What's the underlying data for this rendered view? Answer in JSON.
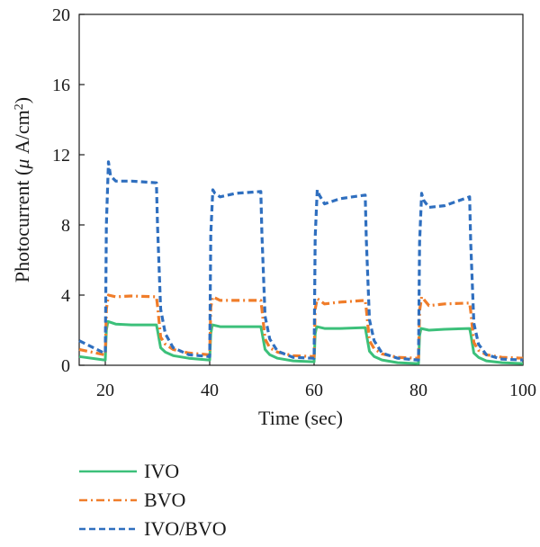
{
  "chart_data": {
    "type": "line",
    "xlabel": "Time (sec)",
    "ylabel_prefix": "Photocurrent (",
    "ylabel_mu": "μ",
    "ylabel_unit": " A/cm",
    "ylabel_sup": "2",
    "ylabel_suffix": ")",
    "xlim": [
      15,
      100
    ],
    "ylim": [
      0,
      20
    ],
    "xticks": [
      20,
      40,
      60,
      80,
      100
    ],
    "yticks": [
      0,
      4,
      8,
      12,
      16,
      20
    ],
    "grid": false,
    "legend_position": "bottom-left",
    "series": [
      {
        "name": "IVO",
        "color": "#3cc07a",
        "dash": "solid",
        "x": [
          15,
          19.8,
          20,
          20.2,
          20.5,
          22,
          25,
          29.8,
          30,
          30.6,
          31.5,
          33,
          36,
          39.8,
          40,
          40.2,
          40.5,
          42,
          45,
          49.8,
          50,
          50.6,
          51.5,
          53,
          56,
          59.8,
          60,
          60.2,
          60.5,
          62,
          65,
          69.8,
          70,
          70.6,
          71.5,
          73,
          76,
          79.8,
          80,
          80.2,
          80.5,
          82,
          85,
          89.8,
          90,
          90.6,
          91.5,
          93,
          96,
          100
        ],
        "y": [
          0.5,
          0.3,
          0.3,
          2.0,
          2.5,
          2.35,
          2.3,
          2.3,
          2.0,
          1.0,
          0.75,
          0.55,
          0.4,
          0.3,
          0.3,
          1.8,
          2.3,
          2.2,
          2.2,
          2.2,
          1.9,
          0.9,
          0.6,
          0.4,
          0.25,
          0.2,
          0.2,
          1.8,
          2.2,
          2.1,
          2.1,
          2.15,
          1.8,
          0.8,
          0.5,
          0.3,
          0.15,
          0.1,
          0.1,
          1.7,
          2.1,
          2.0,
          2.05,
          2.1,
          1.8,
          0.7,
          0.45,
          0.25,
          0.15,
          0.1
        ]
      },
      {
        "name": "BVO",
        "color": "#f07d2a",
        "dash": "dashdot",
        "x": [
          15,
          19.8,
          20,
          20.2,
          20.6,
          22,
          25,
          29.8,
          30,
          30.6,
          31.5,
          33,
          36,
          39.8,
          40,
          40.2,
          40.6,
          42,
          45,
          49.8,
          50,
          50.6,
          51.5,
          53,
          56,
          59.8,
          60,
          60.2,
          60.6,
          62,
          65,
          69.8,
          70,
          70.6,
          71.5,
          73,
          76,
          79.8,
          80,
          80.2,
          80.6,
          82,
          85,
          89.8,
          90,
          90.6,
          91.5,
          93,
          96,
          100
        ],
        "y": [
          0.9,
          0.6,
          0.6,
          3.2,
          4.0,
          3.9,
          3.95,
          3.9,
          3.4,
          1.6,
          1.2,
          0.9,
          0.7,
          0.6,
          0.6,
          3.3,
          3.9,
          3.7,
          3.7,
          3.7,
          3.2,
          1.5,
          1.0,
          0.75,
          0.55,
          0.5,
          0.5,
          3.2,
          3.8,
          3.5,
          3.6,
          3.7,
          3.2,
          1.4,
          0.95,
          0.65,
          0.45,
          0.4,
          0.4,
          3.1,
          3.9,
          3.4,
          3.5,
          3.55,
          3.1,
          1.3,
          0.85,
          0.6,
          0.45,
          0.4
        ]
      },
      {
        "name": "IVO/BVO",
        "color": "#2f6fbf",
        "dash": "dashed",
        "x": [
          15,
          19.8,
          20,
          20.2,
          20.6,
          21,
          22,
          25,
          29.8,
          30,
          30.6,
          31.5,
          33,
          36,
          39.8,
          40,
          40.2,
          40.6,
          41,
          42,
          45,
          49.8,
          50,
          50.6,
          51.5,
          53,
          56,
          59.8,
          60,
          60.2,
          60.6,
          61,
          62,
          65,
          69.8,
          70,
          70.6,
          71.5,
          73,
          76,
          79.8,
          80,
          80.2,
          80.6,
          81,
          82,
          85,
          89.8,
          90,
          90.6,
          91.5,
          93,
          96,
          100
        ],
        "y": [
          1.4,
          0.7,
          0.7,
          8.0,
          11.6,
          10.8,
          10.5,
          10.5,
          10.4,
          8.0,
          3.2,
          1.8,
          1.0,
          0.6,
          0.5,
          0.5,
          7.5,
          10.0,
          9.8,
          9.6,
          9.8,
          9.9,
          7.5,
          2.8,
          1.5,
          0.8,
          0.45,
          0.4,
          0.4,
          7.3,
          10.0,
          9.7,
          9.2,
          9.5,
          9.7,
          7.2,
          2.6,
          1.4,
          0.7,
          0.4,
          0.3,
          0.3,
          7.0,
          9.8,
          9.4,
          9.0,
          9.1,
          9.6,
          7.0,
          2.4,
          1.2,
          0.6,
          0.35,
          0.3
        ]
      }
    ]
  }
}
